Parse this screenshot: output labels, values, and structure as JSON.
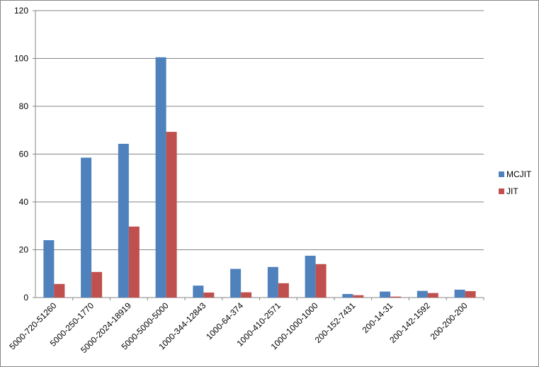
{
  "chart_data": {
    "type": "bar",
    "categories": [
      "5000-720-51260",
      "5000-250-1770",
      "5000-2024-18919",
      "5000-5000-5000",
      "1000-344-12843",
      "1000-64-374",
      "1000-410-2571",
      "1000-1000-1000",
      "200-152-7431",
      "200-14-31",
      "200-142-1592",
      "200-200-200"
    ],
    "series": [
      {
        "name": "MCJIT",
        "color": "#4f81bd",
        "values": [
          24,
          58.5,
          64.3,
          100.5,
          5,
          12,
          12.8,
          17.5,
          1.5,
          2.5,
          2.8,
          3.3
        ]
      },
      {
        "name": "JIT",
        "color": "#c0504d",
        "values": [
          5.7,
          10.7,
          29.7,
          69.3,
          2.1,
          2.2,
          6,
          14,
          1,
          0.4,
          1.9,
          2.7
        ]
      }
    ],
    "ylim": [
      0,
      120
    ],
    "yticks": [
      0,
      20,
      40,
      60,
      80,
      100,
      120
    ],
    "grid": true,
    "legend": "right"
  }
}
